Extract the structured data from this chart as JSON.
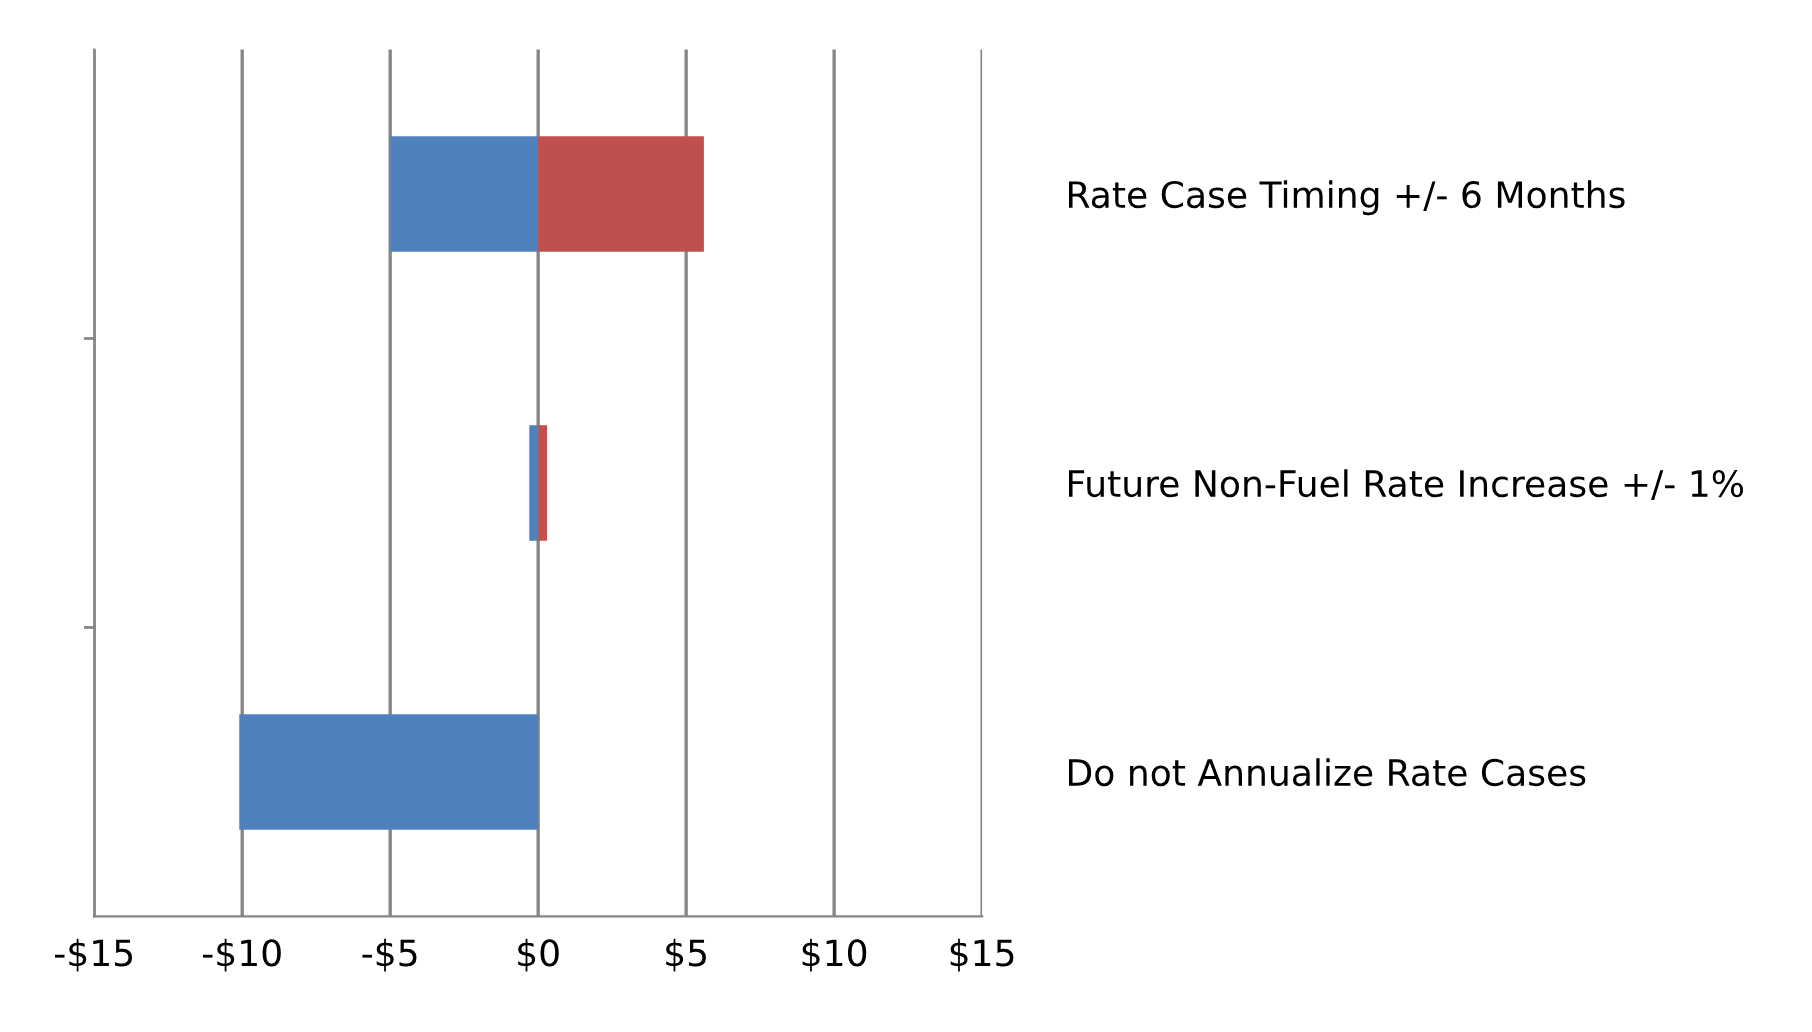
{
  "chart_data": {
    "type": "bar",
    "orientation": "horizontal",
    "stacked": true,
    "categories": [
      "Rate Case Timing +/- 6 Months",
      "Future Non-Fuel Rate Increase +/- 1%",
      "Do not Annualize Rate Cases"
    ],
    "series": [
      {
        "color": "#4f81bd",
        "values": [
          -5.0,
          -0.3,
          -10.1
        ]
      },
      {
        "color": "#c0504d",
        "values": [
          5.6,
          0.3,
          0
        ]
      }
    ],
    "xlim": [
      -15,
      15
    ],
    "xticks": [
      {
        "value": -15,
        "label": "-$15"
      },
      {
        "value": -10,
        "label": "-$10"
      },
      {
        "value": -5,
        "label": "-$5"
      },
      {
        "value": 0,
        "label": "$0"
      },
      {
        "value": 5,
        "label": "$5"
      },
      {
        "value": 10,
        "label": "$10"
      },
      {
        "value": 15,
        "label": "$15"
      }
    ],
    "grid": "x",
    "legend": false
  }
}
